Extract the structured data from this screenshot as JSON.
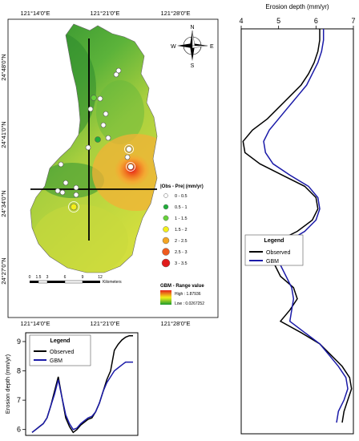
{
  "map": {
    "lon_ticks_top": [
      "121°14'0\"E",
      "121°21'0\"E",
      "121°28'0\"E"
    ],
    "lon_ticks_bottom": [
      "121°14'0\"E",
      "121°21'0\"E",
      "121°28'0\"E"
    ],
    "lat_ticks": [
      "24°48'0\"N",
      "24°41'0\"N",
      "24°34'0\"N",
      "24°27'0\"N"
    ],
    "compass": {
      "n": "N",
      "s": "S",
      "e": "E",
      "w": "W"
    },
    "scalebar": {
      "ticks": [
        "0",
        "1.5",
        "3",
        "6",
        "9",
        "12"
      ],
      "unit": "Kilometers"
    },
    "legend_obs": {
      "title": "|Obs - Pre| (mm/yr)",
      "classes": [
        {
          "label": "0 - 0.5",
          "color": "#ffffff"
        },
        {
          "label": "0.5 - 1",
          "color": "#1fae3a"
        },
        {
          "label": "1 - 1.5",
          "color": "#66d23a"
        },
        {
          "label": "1.5 - 2",
          "color": "#f3ef1a"
        },
        {
          "label": "2 - 2.5",
          "color": "#f5a623"
        },
        {
          "label": "2.5 - 3",
          "color": "#ee5a1e"
        },
        {
          "label": "3 - 3.5",
          "color": "#e01b1b"
        }
      ]
    },
    "legend_gbm": {
      "title": "GBM - Range value",
      "high": "High : 1.87936",
      "low": "Low : 0.0267252"
    }
  },
  "colors": {
    "observed": "#000000",
    "gbm": "#1a1aa8"
  },
  "chart_data": [
    {
      "type": "line",
      "orientation": "vertical-profile",
      "xlabel": "Erosion depth (mm/yr)",
      "xlim": [
        4,
        7
      ],
      "xticks": [
        "4",
        "5",
        "6",
        "7"
      ],
      "legend": {
        "title": "Legend",
        "position": "bottom-left"
      },
      "series": [
        {
          "name": "Observed",
          "values": [
            6.1,
            6.1,
            6.05,
            5.95,
            5.8,
            5.6,
            5.3,
            5.0,
            4.7,
            4.3,
            4.05,
            4.1,
            4.5,
            5.1,
            5.7,
            6.0,
            6.05,
            5.9,
            5.5,
            4.9,
            4.85,
            4.9,
            5.05,
            5.4,
            5.5,
            5.3,
            5.05,
            5.6,
            6.1,
            6.4,
            6.7,
            6.9,
            6.95,
            6.85,
            6.75,
            6.7
          ]
        },
        {
          "name": "GBM",
          "values": [
            6.2,
            6.2,
            6.15,
            6.05,
            5.9,
            5.75,
            5.5,
            5.25,
            5.0,
            4.75,
            4.6,
            4.65,
            4.85,
            5.3,
            5.8,
            6.05,
            6.1,
            6.0,
            5.7,
            5.2,
            5.0,
            5.05,
            5.2,
            5.35,
            5.4,
            5.35,
            5.3,
            5.7,
            6.1,
            6.35,
            6.6,
            6.8,
            6.85,
            6.75,
            6.6,
            6.55
          ]
        }
      ]
    },
    {
      "type": "line",
      "ylabel": "Erosion depth (mm/yr)",
      "ylim": [
        5.8,
        9.3
      ],
      "yticks": [
        "6",
        "7",
        "8",
        "9"
      ],
      "legend": {
        "title": "Legend",
        "position": "top-left"
      },
      "series": [
        {
          "name": "Observed",
          "values": [
            5.9,
            6.0,
            6.1,
            6.2,
            6.4,
            6.8,
            7.3,
            7.8,
            7.1,
            6.4,
            6.1,
            5.9,
            6.0,
            6.15,
            6.25,
            6.35,
            6.4,
            6.6,
            6.9,
            7.3,
            7.7,
            8.0,
            8.7,
            8.9,
            9.05,
            9.15,
            9.2,
            9.2
          ]
        },
        {
          "name": "GBM",
          "values": [
            5.9,
            6.0,
            6.1,
            6.2,
            6.4,
            6.8,
            7.2,
            7.7,
            7.1,
            6.5,
            6.2,
            6.0,
            6.05,
            6.2,
            6.3,
            6.4,
            6.45,
            6.6,
            6.9,
            7.3,
            7.6,
            7.8,
            8.0,
            8.1,
            8.2,
            8.3,
            8.3,
            8.3
          ]
        }
      ]
    }
  ]
}
